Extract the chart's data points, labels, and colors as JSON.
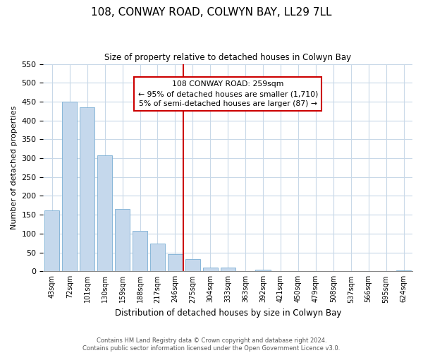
{
  "title": "108, CONWAY ROAD, COLWYN BAY, LL29 7LL",
  "subtitle": "Size of property relative to detached houses in Colwyn Bay",
  "xlabel": "Distribution of detached houses by size in Colwyn Bay",
  "ylabel": "Number of detached properties",
  "bar_labels": [
    "43sqm",
    "72sqm",
    "101sqm",
    "130sqm",
    "159sqm",
    "188sqm",
    "217sqm",
    "246sqm",
    "275sqm",
    "304sqm",
    "333sqm",
    "363sqm",
    "392sqm",
    "421sqm",
    "450sqm",
    "479sqm",
    "508sqm",
    "537sqm",
    "566sqm",
    "595sqm",
    "624sqm"
  ],
  "bar_values": [
    162,
    450,
    435,
    308,
    165,
    108,
    74,
    45,
    33,
    10,
    10,
    0,
    4,
    0,
    0,
    0,
    0,
    0,
    0,
    0,
    3
  ],
  "bar_color": "#c5d8ec",
  "bar_edge_color": "#7bafd4",
  "ylim": [
    0,
    550
  ],
  "yticks": [
    0,
    50,
    100,
    150,
    200,
    250,
    300,
    350,
    400,
    450,
    500,
    550
  ],
  "vline_color": "#cc0000",
  "annotation_lines": [
    "108 CONWAY ROAD: 259sqm",
    "← 95% of detached houses are smaller (1,710)",
    "5% of semi-detached houses are larger (87) →"
  ],
  "footer_line1": "Contains HM Land Registry data © Crown copyright and database right 2024.",
  "footer_line2": "Contains public sector information licensed under the Open Government Licence v3.0.",
  "background_color": "#ffffff",
  "grid_color": "#c8d8e8"
}
